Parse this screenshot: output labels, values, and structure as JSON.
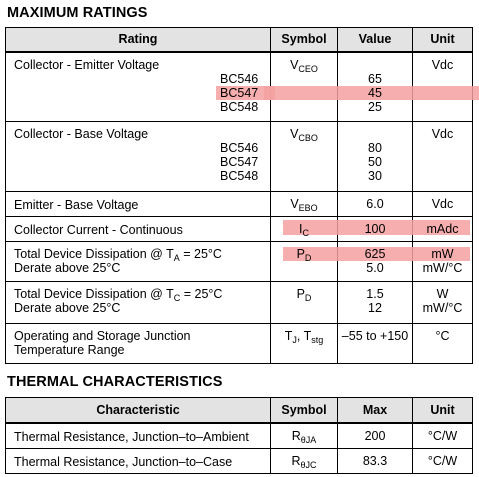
{
  "max_ratings": {
    "title": "MAXIMUM RATINGS",
    "headers": {
      "rating": "Rating",
      "symbol": "Symbol",
      "value": "Value",
      "unit": "Unit"
    },
    "rows": {
      "ceo": {
        "label": "Collector - Emitter Voltage",
        "variants": [
          "BC546",
          "BC547",
          "BC548"
        ],
        "symbol_main": "V",
        "symbol_sub": "CEO",
        "values": [
          "65",
          "45",
          "25"
        ],
        "unit": "Vdc"
      },
      "cbo": {
        "label": "Collector - Base Voltage",
        "variants": [
          "BC546",
          "BC547",
          "BC548"
        ],
        "symbol_main": "V",
        "symbol_sub": "CBO",
        "values": [
          "80",
          "50",
          "30"
        ],
        "unit": "Vdc"
      },
      "ebo": {
        "label": "Emitter - Base Voltage",
        "symbol_main": "V",
        "symbol_sub": "EBO",
        "value": "6.0",
        "unit": "Vdc"
      },
      "ic": {
        "label": "Collector Current - Continuous",
        "symbol_main": "I",
        "symbol_sub": "C",
        "value": "100",
        "unit": "mAdc"
      },
      "pd_a": {
        "label_pre": "Total Device Dissipation @ T",
        "label_sub": "A",
        "label_post": " = 25°C",
        "label2": "Derate above 25°C",
        "symbol_main": "P",
        "symbol_sub": "D",
        "value": "625",
        "value2": "5.0",
        "unit": "mW",
        "unit2": "mW/°C"
      },
      "pd_c": {
        "label_pre": "Total Device Dissipation @ T",
        "label_sub": "C",
        "label_post": " = 25°C",
        "label2": "Derate above 25°C",
        "symbol_main": "P",
        "symbol_sub": "D",
        "value": "1.5",
        "value2": "12",
        "unit": "W",
        "unit2": "mW/°C"
      },
      "temp": {
        "label": "Operating and Storage Junction",
        "label2": "Temperature Range",
        "symbol_a": "T",
        "symbol_a_sub": "J",
        "symbol_sep": ", T",
        "symbol_b_sub": "stg",
        "value": "–55 to +150",
        "unit": "°C"
      }
    }
  },
  "thermal": {
    "title": "THERMAL CHARACTERISTICS",
    "headers": {
      "characteristic": "Characteristic",
      "symbol": "Symbol",
      "max": "Max",
      "unit": "Unit"
    },
    "rows": [
      {
        "label": "Thermal Resistance, Junction–to–Ambient",
        "symbol_main": "R",
        "symbol_sub": "θJA",
        "max": "200",
        "unit": "°C/W"
      },
      {
        "label": "Thermal Resistance, Junction–to–Case",
        "symbol_main": "R",
        "symbol_sub": "θJC",
        "max": "83.3",
        "unit": "°C/W"
      }
    ]
  },
  "highlight_color": "#f4a0a0"
}
